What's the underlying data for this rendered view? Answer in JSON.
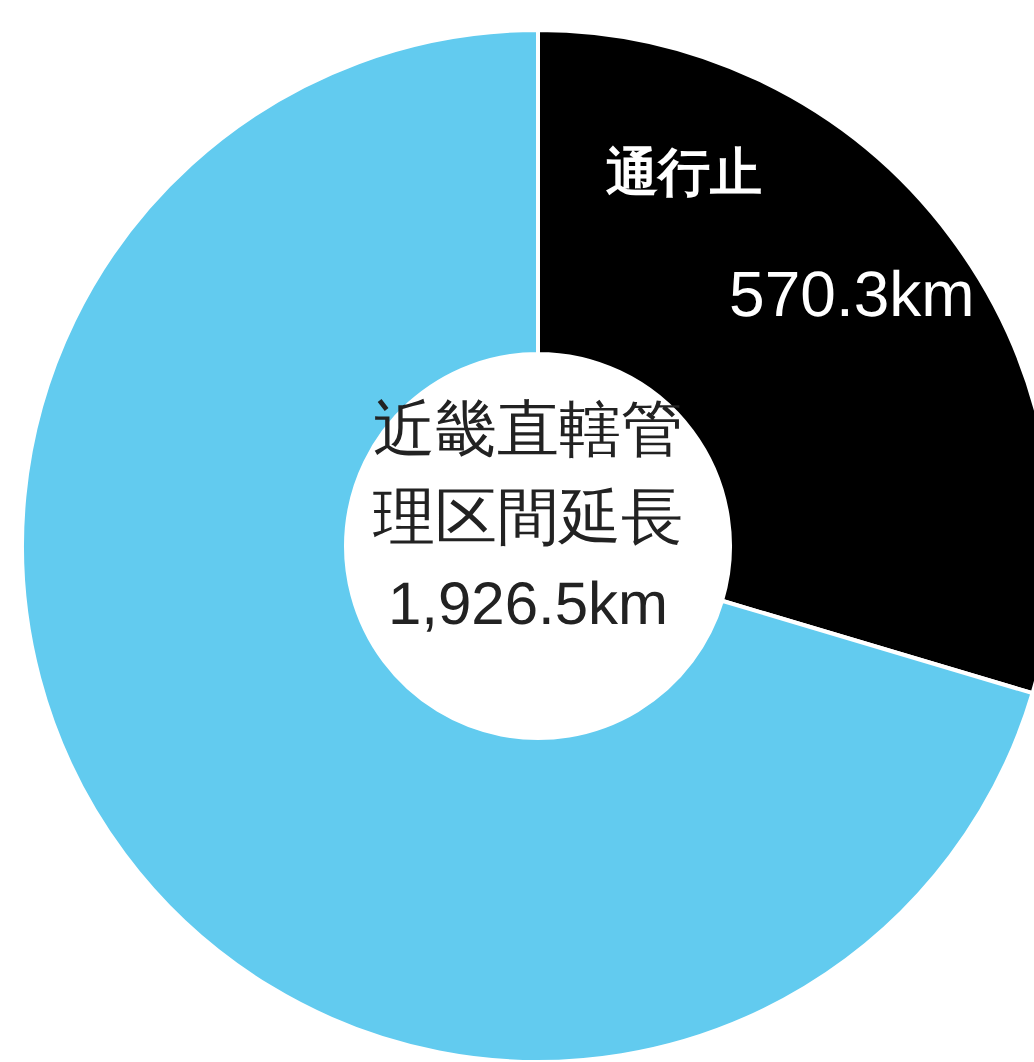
{
  "chart_data": {
    "type": "donut",
    "title": "近畿直轄管理区間延長",
    "annotations": [
      "1,926.5km"
    ],
    "categories": [
      "通行止",
      null
    ],
    "values": [
      570.3,
      1356.2
    ],
    "colors": [
      "#000000",
      "#62cbef"
    ],
    "value_labels": [
      "570.3km",
      null
    ]
  }
}
